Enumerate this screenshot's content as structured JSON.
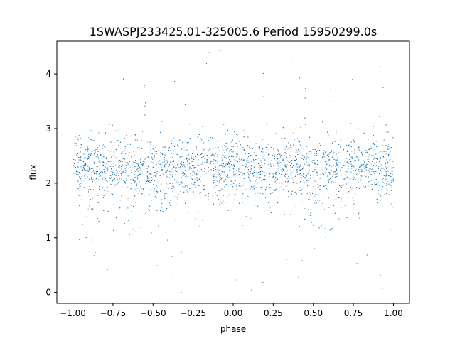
{
  "chart_data": {
    "type": "scatter",
    "title": "1SWASPJ233425.01-325005.6 Period 15950299.0s",
    "xlabel": "phase",
    "ylabel": "flux",
    "xlim": [
      -1.1,
      1.1
    ],
    "ylim": [
      -0.2,
      4.6
    ],
    "xticks": [
      -1.0,
      -0.75,
      -0.5,
      -0.25,
      0.0,
      0.25,
      0.5,
      0.75,
      1.0
    ],
    "xtick_labels": [
      "−1.00",
      "−0.75",
      "−0.50",
      "−0.25",
      "0.00",
      "0.25",
      "0.50",
      "0.75",
      "1.00"
    ],
    "yticks": [
      0,
      1,
      2,
      3,
      4
    ],
    "ytick_labels": [
      "0",
      "1",
      "2",
      "3",
      "4"
    ],
    "grid": false,
    "legend": "none",
    "marker_color": "#1f77b4",
    "phase_range": [
      -1.0,
      1.0
    ],
    "typical_flux_range": [
      1.7,
      2.9
    ],
    "median_flux": 2.3,
    "outlier_flux_range": [
      0.0,
      4.5
    ],
    "spike_phases": [
      -0.55,
      0.45
    ],
    "dip_phases": [
      -0.45,
      0.55
    ]
  }
}
